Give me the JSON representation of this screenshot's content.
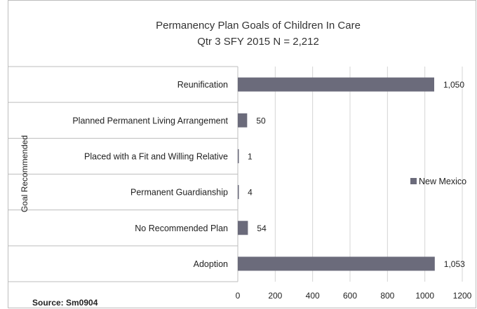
{
  "chart_data": {
    "type": "bar",
    "orientation": "horizontal",
    "title": "Permanency Plan Goals of Children In Care",
    "subtitle": "Qtr 3 SFY 2015 N = 2,212",
    "ylabel": "Goal Recommended",
    "xlabel": "",
    "categories": [
      "Reunification",
      "Planned Permanent Living Arrangement",
      "Placed with a Fit and Willing Relative",
      "Permanent Guardianship",
      "No Recommended Plan",
      "Adoption"
    ],
    "series": [
      {
        "name": "New Mexico",
        "values": [
          1050,
          50,
          1,
          4,
          54,
          1053
        ],
        "value_labels": [
          "1,050",
          "50",
          "1",
          "4",
          "54",
          "1,053"
        ],
        "color": "#6b6b7b"
      }
    ],
    "xlim": [
      0,
      1200
    ],
    "xticks": [
      "0",
      "200",
      "400",
      "600",
      "800",
      "1000",
      "1200"
    ],
    "xtick_values": [
      0,
      200,
      400,
      600,
      800,
      1000,
      1200
    ],
    "grid": true,
    "legend_position": "right"
  },
  "source": "Source: Sm0904"
}
